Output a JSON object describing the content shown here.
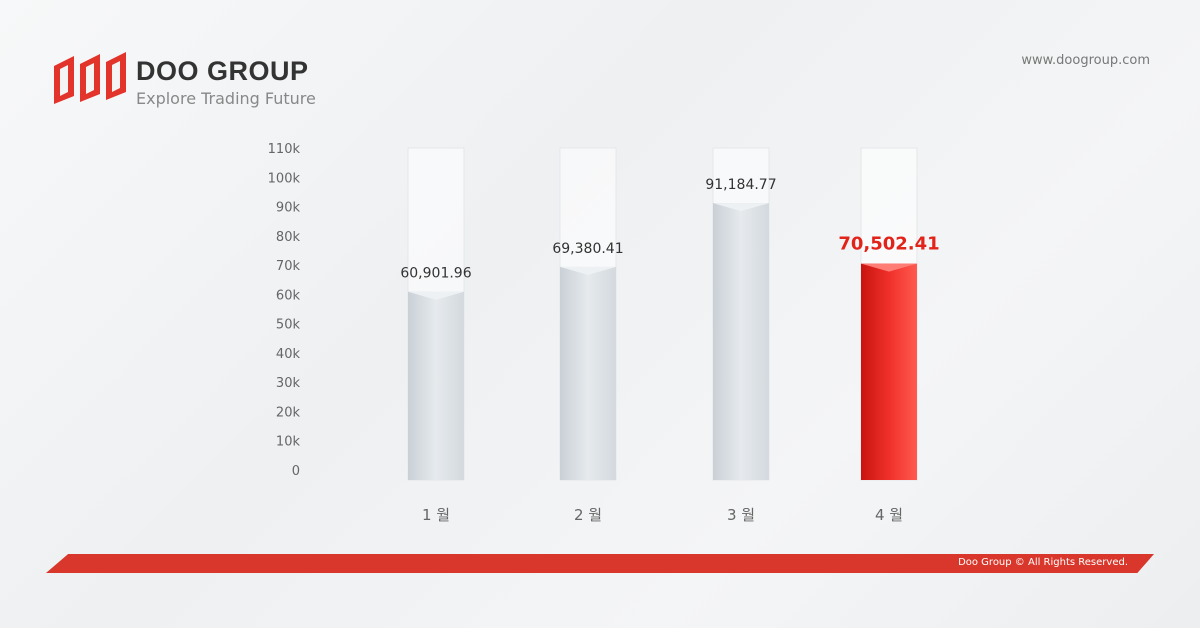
{
  "header": {
    "brand": "DOO GROUP",
    "tagline": "Explore Trading Future",
    "url": "www.doogroup.com"
  },
  "footer": {
    "copyright": "Doo Group © All Rights Reserved."
  },
  "colors": {
    "accent": "#d9372b",
    "highlight_bar": "#e8251f",
    "bar": "#d8dde2"
  },
  "chart_data": {
    "type": "bar",
    "categories": [
      "1 월",
      "2 월",
      "3 월",
      "4 월"
    ],
    "values": [
      60901.96,
      69380.41,
      91184.77,
      70502.41
    ],
    "data_labels": [
      "60,901.96",
      "69,380.41",
      "91,184.77",
      "70,502.41"
    ],
    "highlighted_index": 3,
    "ylim": [
      0,
      110000
    ],
    "yticks": [
      "0",
      "10k",
      "20k",
      "30k",
      "40k",
      "50k",
      "60k",
      "70k",
      "80k",
      "90k",
      "100k",
      "110k"
    ],
    "grid": false,
    "title": "",
    "xlabel": "",
    "ylabel": ""
  }
}
